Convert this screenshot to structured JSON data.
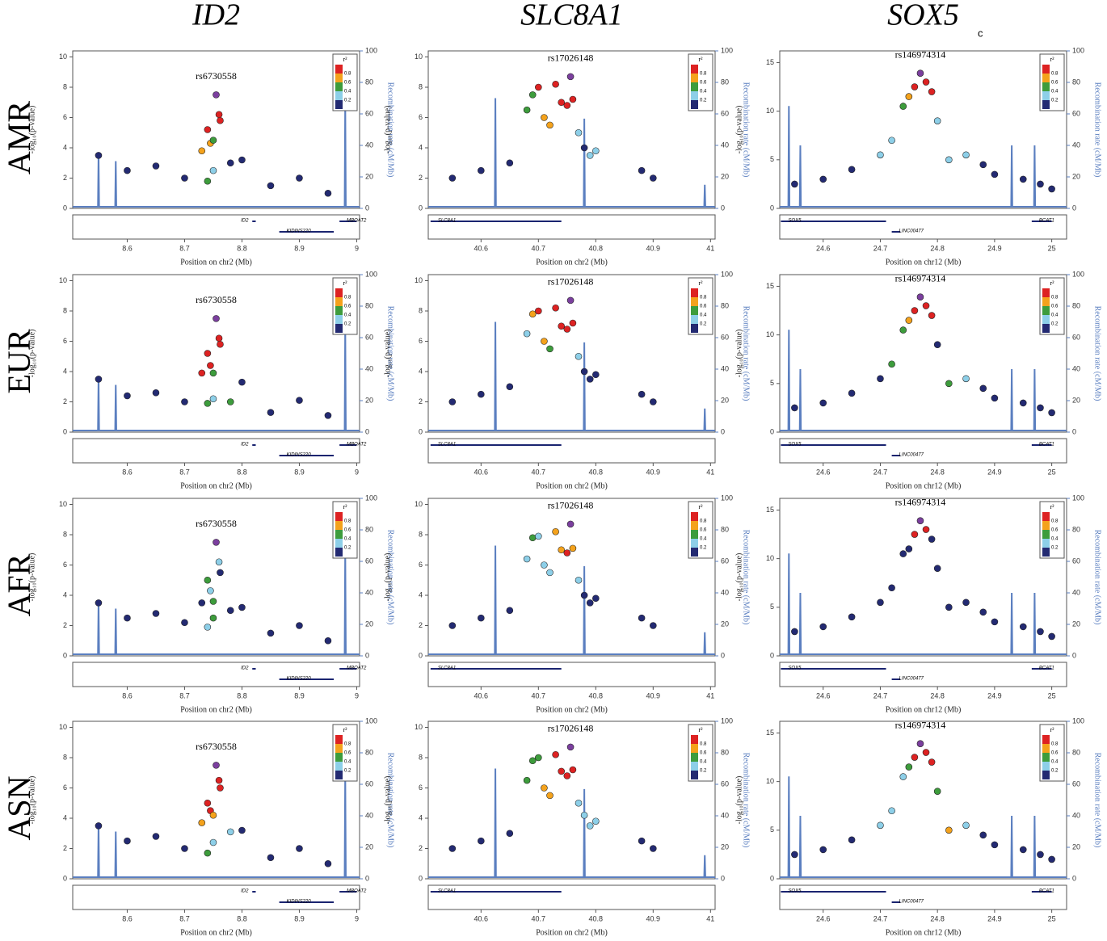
{
  "column_titles": [
    "ID2",
    "SLC8A1",
    "SOX5"
  ],
  "corner_label": "c",
  "row_labels": [
    "AMR",
    "EUR",
    "AFR",
    "ASN"
  ],
  "chart_data": [
    {
      "type": "scatter",
      "y_label": "-log₁₀(p-value)",
      "y2_label": "Recombination rate (cM/Mb)",
      "x_label": "Position on chr2 (Mb)",
      "xlim": [
        8.505,
        9.005
      ],
      "xticks": [
        8.6,
        8.7,
        8.8,
        8.9,
        9
      ],
      "ylim": [
        0,
        10.4
      ],
      "yticks": [
        0,
        2,
        4,
        6,
        8,
        10
      ],
      "y2lim": [
        0,
        100
      ],
      "y2ticks": [
        0,
        20,
        40,
        60,
        80,
        100
      ],
      "legend": {
        "title": "r²",
        "ticks": [
          0.2,
          0.4,
          0.6,
          0.8
        ],
        "colors": [
          "#232a72",
          "#8dcfe8",
          "#3d9c3c",
          "#f4a21c",
          "#dd2222"
        ]
      },
      "lead_snp": {
        "label": "rs6730558",
        "x": 8.755,
        "color": "#7b3f9e"
      },
      "recombination": {
        "color": "#5b7fc0",
        "x": [
          8.505,
          8.549,
          8.55,
          8.551,
          8.579,
          8.58,
          8.581,
          8.979,
          8.98,
          8.981,
          9.005
        ],
        "values": [
          1,
          1,
          35,
          1,
          1,
          30,
          1,
          1,
          70,
          1,
          1
        ]
      },
      "genes": [
        {
          "name": "ID2",
          "start": 8.818,
          "end": 8.824,
          "direction": "right"
        },
        {
          "name": "KIDINS220",
          "start": 8.865,
          "end": 8.96,
          "direction": "left"
        },
        {
          "name": "MBOAT2",
          "start": 8.97,
          "end": 9.0,
          "direction": "left"
        }
      ],
      "snp_positions": [
        8.55,
        8.6,
        8.65,
        8.7,
        8.73,
        8.74,
        8.745,
        8.75,
        8.76,
        8.762,
        8.75,
        8.74,
        8.78,
        8.8,
        8.85,
        8.9,
        8.95
      ],
      "panels": [
        {
          "lead_y": 7.5,
          "neg_log_p": [
            3.5,
            2.5,
            2.8,
            2,
            3.8,
            5.2,
            4.3,
            4.5,
            6.2,
            5.8,
            2.5,
            1.8,
            3,
            3.2,
            1.5,
            2,
            1
          ],
          "r2": [
            0.05,
            0.05,
            0.05,
            0.1,
            0.7,
            0.9,
            0.7,
            0.5,
            0.9,
            0.9,
            0.3,
            0.5,
            0.1,
            0.05,
            0.05,
            0.05,
            0.05
          ]
        },
        {
          "lead_y": 7.5,
          "neg_log_p": [
            3.5,
            2.4,
            2.6,
            2,
            3.9,
            5.2,
            4.4,
            3.9,
            6.2,
            5.8,
            2.2,
            1.9,
            2,
            3.3,
            1.3,
            2.1,
            1.1
          ],
          "r2": [
            0.05,
            0.05,
            0.05,
            0.1,
            0.9,
            0.9,
            0.9,
            0.5,
            0.9,
            0.9,
            0.3,
            0.5,
            0.5,
            0.05,
            0.05,
            0.05,
            0.05
          ]
        },
        {
          "lead_y": 7.5,
          "neg_log_p": [
            3.5,
            2.5,
            2.8,
            2.2,
            3.5,
            5,
            4.3,
            3.6,
            6.2,
            5.5,
            2.5,
            1.9,
            3,
            3.2,
            1.5,
            2,
            1
          ],
          "r2": [
            0.05,
            0.05,
            0.05,
            0.1,
            0.1,
            0.5,
            0.3,
            0.5,
            0.3,
            0.1,
            0.5,
            0.3,
            0.1,
            0.05,
            0.05,
            0.05,
            0.05
          ]
        },
        {
          "lead_y": 7.5,
          "neg_log_p": [
            3.5,
            2.5,
            2.8,
            2,
            3.7,
            5,
            4.5,
            4.2,
            6.5,
            6,
            2.4,
            1.7,
            3.1,
            3.2,
            1.4,
            2,
            1
          ],
          "r2": [
            0.05,
            0.05,
            0.05,
            0.1,
            0.7,
            0.9,
            0.9,
            0.7,
            0.9,
            0.9,
            0.3,
            0.5,
            0.3,
            0.05,
            0.05,
            0.05,
            0.05
          ]
        }
      ]
    },
    {
      "type": "scatter",
      "y_label": "-log₁₀(p-value)",
      "y2_label": "Recombination rate (cM/Mb)",
      "x_label": "Position on chr2 (Mb)",
      "xlim": [
        40.508,
        41.008
      ],
      "xticks": [
        40.6,
        40.7,
        40.8,
        40.9,
        41
      ],
      "ylim": [
        0,
        10.4
      ],
      "yticks": [
        0,
        2,
        4,
        6,
        8,
        10
      ],
      "y2lim": [
        0,
        100
      ],
      "y2ticks": [
        0,
        20,
        40,
        60,
        80,
        100
      ],
      "legend": {
        "title": "r²",
        "ticks": [
          0.2,
          0.4,
          0.6,
          0.8
        ],
        "colors": [
          "#232a72",
          "#8dcfe8",
          "#3d9c3c",
          "#f4a21c",
          "#dd2222"
        ]
      },
      "lead_snp": {
        "label": "rs17026148",
        "x": 40.756,
        "color": "#7b3f9e"
      },
      "recombination": {
        "color": "#5b7fc0",
        "x": [
          40.508,
          40.624,
          40.625,
          40.626,
          40.779,
          40.78,
          40.781,
          40.989,
          40.99,
          40.991,
          41.008
        ],
        "values": [
          1,
          1,
          70,
          1,
          1,
          57,
          1,
          1,
          15,
          1,
          1
        ]
      },
      "genes": [
        {
          "name": "SLC8A1",
          "start": 40.512,
          "end": 40.74,
          "direction": "left"
        }
      ],
      "snp_positions": [
        40.55,
        40.6,
        40.65,
        40.68,
        40.69,
        40.7,
        40.71,
        40.72,
        40.73,
        40.74,
        40.75,
        40.76,
        40.77,
        40.78,
        40.79,
        40.8,
        40.88,
        40.9
      ],
      "panels": [
        {
          "lead_y": 8.7,
          "neg_log_p": [
            2,
            2.5,
            3,
            6.5,
            7.5,
            8,
            6,
            5.5,
            8.2,
            7,
            6.8,
            7.2,
            5,
            4,
            3.5,
            3.8,
            2.5,
            2
          ],
          "r2": [
            0.05,
            0.05,
            0.1,
            0.5,
            0.5,
            0.9,
            0.7,
            0.7,
            0.9,
            0.9,
            0.9,
            0.9,
            0.3,
            0.1,
            0.3,
            0.3,
            0.05,
            0.05
          ]
        },
        {
          "lead_y": 8.7,
          "neg_log_p": [
            2,
            2.5,
            3,
            6.5,
            7.8,
            8,
            6,
            5.5,
            8.2,
            7,
            6.8,
            7.2,
            5,
            4,
            3.5,
            3.8,
            2.5,
            2
          ],
          "r2": [
            0.05,
            0.05,
            0.1,
            0.3,
            0.7,
            0.9,
            0.7,
            0.5,
            0.9,
            0.9,
            0.9,
            0.9,
            0.3,
            0.1,
            0.1,
            0.1,
            0.05,
            0.05
          ]
        },
        {
          "lead_y": 8.7,
          "neg_log_p": [
            2,
            2.5,
            3,
            6.4,
            7.8,
            7.9,
            6,
            5.5,
            8.2,
            7,
            6.8,
            7.1,
            5,
            4,
            3.5,
            3.8,
            2.5,
            2
          ],
          "r2": [
            0.05,
            0.05,
            0.1,
            0.3,
            0.5,
            0.3,
            0.3,
            0.3,
            0.7,
            0.7,
            0.9,
            0.7,
            0.3,
            0.1,
            0.1,
            0.1,
            0.05,
            0.05
          ]
        },
        {
          "lead_y": 8.7,
          "neg_log_p": [
            2,
            2.5,
            3,
            6.5,
            7.8,
            8,
            6,
            5.5,
            8.2,
            7.1,
            6.8,
            7.2,
            5,
            4.2,
            3.5,
            3.8,
            2.5,
            2
          ],
          "r2": [
            0.05,
            0.05,
            0.1,
            0.5,
            0.5,
            0.5,
            0.7,
            0.7,
            0.9,
            0.9,
            0.9,
            0.9,
            0.3,
            0.3,
            0.3,
            0.3,
            0.05,
            0.05
          ]
        }
      ]
    },
    {
      "type": "scatter",
      "y_label": "-log₁₀(p-value)",
      "y2_label": "Recombination rate (cM/Mb)",
      "x_label": "Position on chr12 (Mb)",
      "xlim": [
        24.524,
        25.026
      ],
      "xticks": [
        24.6,
        24.7,
        24.8,
        24.9,
        25
      ],
      "ylim": [
        0,
        16.2
      ],
      "yticks": [
        0,
        5,
        10,
        15
      ],
      "y2lim": [
        0,
        100
      ],
      "y2ticks": [
        0,
        20,
        40,
        60,
        80,
        100
      ],
      "legend": {
        "title": "r²",
        "ticks": [
          0.2,
          0.4,
          0.6,
          0.8
        ],
        "colors": [
          "#232a72",
          "#8dcfe8",
          "#3d9c3c",
          "#f4a21c",
          "#dd2222"
        ]
      },
      "lead_snp": {
        "label": "rs146974314",
        "x": 24.77,
        "color": "#7b3f9e"
      },
      "recombination": {
        "color": "#5b7fc0",
        "x": [
          24.524,
          24.539,
          24.54,
          24.541,
          24.559,
          24.56,
          24.561,
          24.929,
          24.93,
          24.931,
          24.969,
          24.97,
          24.971,
          25.026
        ],
        "values": [
          1,
          1,
          65,
          1,
          1,
          40,
          1,
          1,
          40,
          1,
          1,
          40,
          1,
          1
        ]
      },
      "genes": [
        {
          "name": "SOX5",
          "start": 24.526,
          "end": 24.71,
          "direction": "left"
        },
        {
          "name": "LINC00477",
          "start": 24.72,
          "end": 24.735,
          "direction": "left"
        },
        {
          "name": "BCAT1",
          "start": 24.965,
          "end": 25.0,
          "direction": "left"
        }
      ],
      "snp_positions": [
        24.55,
        24.6,
        24.65,
        24.7,
        24.72,
        24.74,
        24.75,
        24.76,
        24.78,
        24.79,
        24.8,
        24.82,
        24.85,
        24.88,
        24.9,
        24.95,
        24.98,
        25.0
      ],
      "panels": [
        {
          "lead_y": 13.9,
          "neg_log_p": [
            2.5,
            3,
            4,
            5.5,
            7,
            10.5,
            11.5,
            12.5,
            13,
            12,
            9,
            5,
            5.5,
            4.5,
            3.5,
            3,
            2.5,
            2
          ],
          "r2": [
            0.05,
            0.05,
            0.1,
            0.3,
            0.3,
            0.5,
            0.7,
            0.9,
            0.9,
            0.9,
            0.3,
            0.3,
            0.3,
            0.1,
            0.1,
            0.05,
            0.05,
            0.05
          ]
        },
        {
          "lead_y": 13.9,
          "neg_log_p": [
            2.5,
            3,
            4,
            5.5,
            7,
            10.5,
            11.5,
            12.5,
            13,
            12,
            9,
            5,
            5.5,
            4.5,
            3.5,
            3,
            2.5,
            2
          ],
          "r2": [
            0.05,
            0.05,
            0.1,
            0.1,
            0.5,
            0.5,
            0.7,
            0.9,
            0.9,
            0.9,
            0.1,
            0.5,
            0.3,
            0.1,
            0.1,
            0.05,
            0.05,
            0.05
          ]
        },
        {
          "lead_y": 13.9,
          "neg_log_p": [
            2.5,
            3,
            4,
            5.5,
            7,
            10.5,
            11,
            12.5,
            13,
            12,
            9,
            5,
            5.5,
            4.5,
            3.5,
            3,
            2.5,
            2
          ],
          "r2": [
            0.05,
            0.05,
            0.05,
            0.1,
            0.1,
            0.1,
            0.1,
            0.9,
            0.9,
            0.1,
            0.1,
            0.1,
            0.1,
            0.1,
            0.05,
            0.05,
            0.05,
            0.05
          ]
        },
        {
          "lead_y": 13.9,
          "neg_log_p": [
            2.5,
            3,
            4,
            5.5,
            7,
            10.5,
            11.5,
            12.5,
            13,
            12,
            9,
            5,
            5.5,
            4.5,
            3.5,
            3,
            2.5,
            2
          ],
          "r2": [
            0.05,
            0.05,
            0.1,
            0.3,
            0.3,
            0.3,
            0.5,
            0.9,
            0.9,
            0.9,
            0.5,
            0.7,
            0.3,
            0.1,
            0.1,
            0.05,
            0.05,
            0.05
          ]
        }
      ]
    }
  ]
}
